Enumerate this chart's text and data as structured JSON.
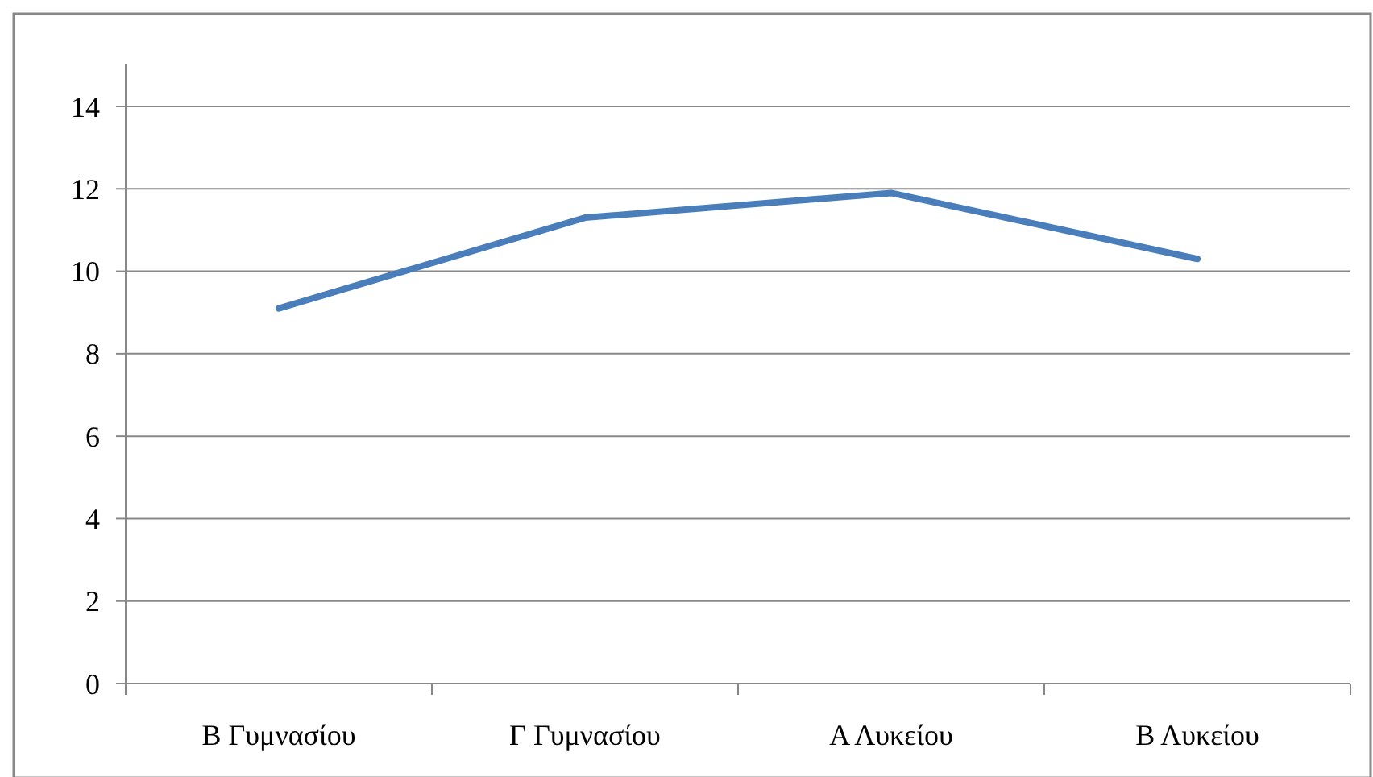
{
  "chart_data": {
    "type": "line",
    "categories": [
      "Β Γυμνασίου",
      "Γ Γυμνασίου",
      "Α Λυκείου",
      "Β Λυκείου"
    ],
    "series": [
      {
        "color": "#4a7ebb",
        "values": [
          9.1,
          11.3,
          11.9,
          10.3
        ]
      }
    ],
    "ylim": [
      0,
      14
    ],
    "yticks": [
      0,
      2,
      4,
      6,
      8,
      10,
      12,
      14
    ],
    "grid": "y",
    "marker": "none",
    "line_style": "solid"
  }
}
